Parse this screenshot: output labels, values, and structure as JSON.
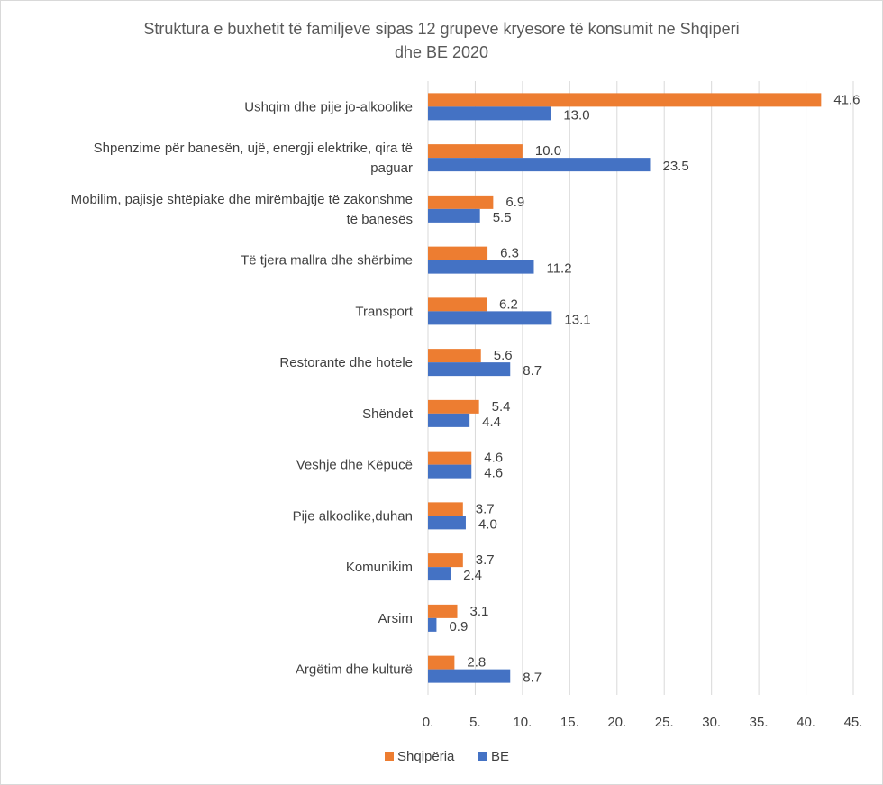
{
  "chart_data": {
    "type": "bar",
    "orientation": "horizontal",
    "title_lines": [
      "Struktura e buxhetit të familjeve sipas 12 grupeve kryesore të konsumit ne Shqiperi",
      "dhe BE 2020"
    ],
    "categories": [
      [
        "Ushqim dhe pije jo-alkoolike"
      ],
      [
        "Shpenzime për banesën, ujë, energji elektrike, qira të",
        "paguar"
      ],
      [
        "Mobilim, pajisje shtëpiake dhe mirëmbajtje të zakonshme",
        "të banesës"
      ],
      [
        "Të tjera mallra dhe shërbime"
      ],
      [
        "Transport"
      ],
      [
        "Restorante dhe hotele"
      ],
      [
        "Shëndet"
      ],
      [
        "Veshje dhe Këpucë"
      ],
      [
        "Pije alkoolike,duhan"
      ],
      [
        "Komunikim"
      ],
      [
        "Arsim"
      ],
      [
        "Argëtim dhe kulturë"
      ]
    ],
    "series": [
      {
        "name": "Shqipëria",
        "color": "#ED7D31",
        "values": [
          41.6,
          10.0,
          6.9,
          6.3,
          6.2,
          5.6,
          5.4,
          4.6,
          3.7,
          3.7,
          3.1,
          2.8
        ],
        "labels": [
          "41.6",
          "10.0",
          "6.9",
          "6.3",
          "6.2",
          "5.6",
          "5.4",
          "4.6",
          "3.7",
          "3.7",
          "3.1",
          "2.8"
        ]
      },
      {
        "name": "BE",
        "color": "#4472C4",
        "values": [
          13.0,
          23.5,
          5.5,
          11.2,
          13.1,
          8.7,
          4.4,
          4.6,
          4.0,
          2.4,
          0.9,
          8.7
        ],
        "labels": [
          "13.0",
          "23.5",
          "5.5",
          "11.2",
          "13.1",
          "8.7",
          "4.4",
          "4.6",
          "4.0",
          "2.4",
          "0.9",
          "8.7"
        ]
      }
    ],
    "xlim": [
      0,
      45
    ],
    "xticks": [
      0,
      5,
      10,
      15,
      20,
      25,
      30,
      35,
      40,
      45
    ],
    "xtick_labels": [
      "0.",
      "5.",
      "10.",
      "15.",
      "20.",
      "25.",
      "30.",
      "35.",
      "40.",
      "45."
    ],
    "gridlines": true,
    "legend_position": "bottom",
    "gridline_color": "#d9d9d9"
  }
}
